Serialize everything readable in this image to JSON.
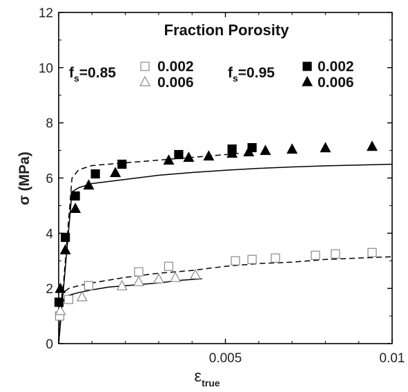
{
  "chart_data": {
    "type": "scatter",
    "xlabel": "ε",
    "xlabel_sub": "true",
    "ylabel": "σ (MPa)",
    "xlim": [
      0,
      0.01
    ],
    "ylim": [
      0,
      12
    ],
    "xticks": [
      0,
      0.005,
      0.01
    ],
    "xtick_labels": [
      "",
      "0.005",
      "0.01"
    ],
    "yticks": [
      0,
      2,
      4,
      6,
      8,
      10,
      12
    ],
    "ytick_labels": [
      "0",
      "2",
      "4",
      "6",
      "8",
      "10",
      "12"
    ],
    "grid": false,
    "legend": {
      "title": "Fraction Porosity",
      "groups": [
        {
          "prefix": "f",
          "sub": "s",
          "value": "=0.85",
          "entries": [
            {
              "marker": "open-square",
              "label": "0.002"
            },
            {
              "marker": "open-triangle",
              "label": "0.006"
            }
          ]
        },
        {
          "prefix": "f",
          "sub": "s",
          "value": "=0.95",
          "entries": [
            {
              "marker": "filled-square",
              "label": "0.002"
            },
            {
              "marker": "filled-triangle",
              "label": "0.006"
            }
          ]
        }
      ]
    },
    "series": [
      {
        "marker": "open-square",
        "color": "#888888",
        "x": [
          3e-05,
          0.0003,
          0.0009,
          0.0024,
          0.0033,
          0.0053,
          0.0058,
          0.0065,
          0.0077,
          0.0083,
          0.0094
        ],
        "y": [
          1.0,
          1.6,
          2.1,
          2.6,
          2.8,
          3.0,
          3.05,
          3.1,
          3.2,
          3.25,
          3.3
        ]
      },
      {
        "marker": "open-triangle",
        "color": "#888888",
        "x": [
          5e-05,
          0.0007,
          0.0019,
          0.0024,
          0.003,
          0.0035,
          0.0041
        ],
        "y": [
          1.2,
          1.7,
          2.1,
          2.25,
          2.35,
          2.4,
          2.5
        ]
      },
      {
        "marker": "filled-square",
        "color": "#000000",
        "x": [
          1e-05,
          0.0002,
          0.0005,
          0.0011,
          0.0019,
          0.0036,
          0.0052,
          0.0058
        ],
        "y": [
          1.5,
          3.85,
          5.35,
          6.15,
          6.5,
          6.85,
          7.05,
          7.1
        ]
      },
      {
        "marker": "filled-triangle",
        "color": "#000000",
        "x": [
          5e-05,
          0.0002,
          0.0005,
          0.0009,
          0.0017,
          0.0033,
          0.0039,
          0.0045,
          0.0052,
          0.0057,
          0.0062,
          0.007,
          0.008,
          0.0094
        ],
        "y": [
          2.0,
          3.4,
          4.9,
          5.75,
          6.2,
          6.65,
          6.75,
          6.8,
          6.9,
          6.95,
          7.0,
          7.05,
          7.1,
          7.15
        ]
      },
      {
        "line": "dashed",
        "color": "#000000",
        "x": [
          0,
          0.0001,
          0.0003,
          0.0006,
          0.001,
          0.002,
          0.003,
          0.004,
          0.005,
          0.006,
          0.007,
          0.008,
          0.009,
          0.01
        ],
        "y": [
          0,
          1.8,
          2.0,
          2.1,
          2.2,
          2.4,
          2.55,
          2.65,
          2.8,
          2.9,
          2.95,
          3.05,
          3.1,
          3.15
        ]
      },
      {
        "line": "solid",
        "color": "#000000",
        "x": [
          0,
          0.0001,
          0.0003,
          0.0006,
          0.001,
          0.0015,
          0.002,
          0.003,
          0.0037,
          0.0043
        ],
        "y": [
          0,
          1.5,
          1.75,
          1.85,
          1.95,
          2.05,
          2.1,
          2.2,
          2.3,
          2.35
        ]
      },
      {
        "line": "dashed",
        "color": "#000000",
        "x": [
          0,
          0.0004,
          0.0006,
          0.001,
          0.002,
          0.003,
          0.004,
          0.0055
        ],
        "y": [
          0,
          6.0,
          6.3,
          6.45,
          6.55,
          6.65,
          6.75,
          6.9
        ]
      },
      {
        "line": "solid",
        "color": "#000000",
        "x": [
          0,
          0.0004,
          0.0006,
          0.001,
          0.002,
          0.003,
          0.004,
          0.005,
          0.006,
          0.007,
          0.008,
          0.009,
          0.01
        ],
        "y": [
          0,
          5.5,
          5.65,
          5.8,
          5.95,
          6.1,
          6.2,
          6.28,
          6.35,
          6.4,
          6.44,
          6.47,
          6.5
        ]
      }
    ]
  }
}
